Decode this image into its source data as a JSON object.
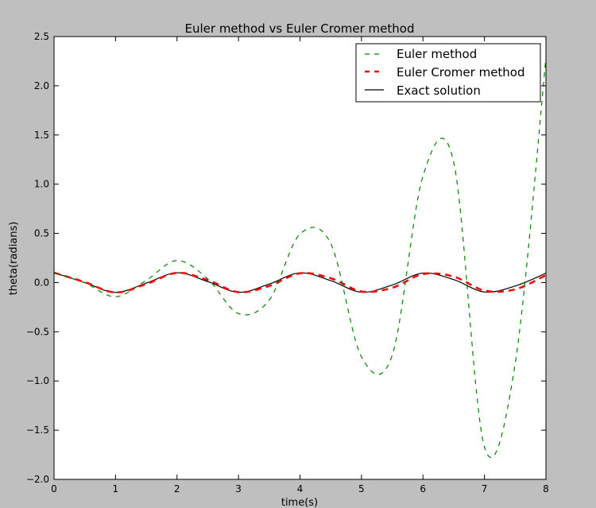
{
  "chart_data": {
    "type": "line",
    "title": "Euler method vs Euler Cromer method",
    "xlabel": "time(s)",
    "ylabel": "theta(radians)",
    "xlim": [
      0,
      8
    ],
    "ylim": [
      -2.0,
      2.5
    ],
    "xticks": [
      0,
      1,
      2,
      3,
      4,
      5,
      6,
      7,
      8
    ],
    "xtick_labels": [
      "0",
      "1",
      "2",
      "3",
      "4",
      "5",
      "6",
      "7",
      "8"
    ],
    "yticks": [
      -2.0,
      -1.5,
      -1.0,
      -0.5,
      0.0,
      0.5,
      1.0,
      1.5,
      2.0,
      2.5
    ],
    "ytick_labels": [
      "−2.0",
      "−1.5",
      "−1.0",
      "−0.5",
      "0.0",
      "0.5",
      "1.0",
      "1.5",
      "2.0",
      "2.5"
    ],
    "grid": false,
    "legend_position": "top-right",
    "series": [
      {
        "name": "Euler method",
        "color": "#008000",
        "style": "dashed",
        "x": [
          0.0,
          0.5,
          1.0,
          1.5,
          2.0,
          2.5,
          3.0,
          3.5,
          4.0,
          4.5,
          5.0,
          5.5,
          6.0,
          6.5,
          7.0,
          7.5,
          8.0
        ],
        "y": [
          0.1,
          -0.002,
          -0.144,
          0.023,
          0.224,
          0.037,
          -0.315,
          -0.178,
          0.493,
          0.398,
          -0.755,
          -0.739,
          1.082,
          1.224,
          -1.671,
          -0.822,
          2.282
        ]
      },
      {
        "name": "Euler Cromer method",
        "color": "#ff0000",
        "style": "dashed",
        "x": [
          0.0,
          0.5,
          1.0,
          1.5,
          2.0,
          2.5,
          3.0,
          3.5,
          4.0,
          4.5,
          5.0,
          5.5,
          6.0,
          6.5,
          7.0,
          7.5,
          8.0
        ],
        "y": [
          0.1,
          0.005,
          -0.1,
          -0.015,
          0.099,
          0.025,
          -0.097,
          -0.034,
          0.094,
          0.044,
          -0.09,
          -0.053,
          0.086,
          0.061,
          -0.081,
          -0.069,
          0.075
        ]
      },
      {
        "name": "Exact solution",
        "color": "#000000",
        "style": "solid",
        "x": [
          0.0,
          0.5,
          1.0,
          1.5,
          2.0,
          2.5,
          3.0,
          3.5,
          4.0,
          4.5,
          5.0,
          5.5,
          6.0,
          6.5,
          7.0,
          7.5,
          8.0
        ],
        "y": [
          0.1,
          0.0,
          -0.1,
          -0.005,
          0.1,
          0.01,
          -0.099,
          -0.015,
          0.099,
          0.02,
          -0.098,
          -0.025,
          0.097,
          0.03,
          -0.096,
          -0.035,
          0.095
        ]
      }
    ]
  }
}
